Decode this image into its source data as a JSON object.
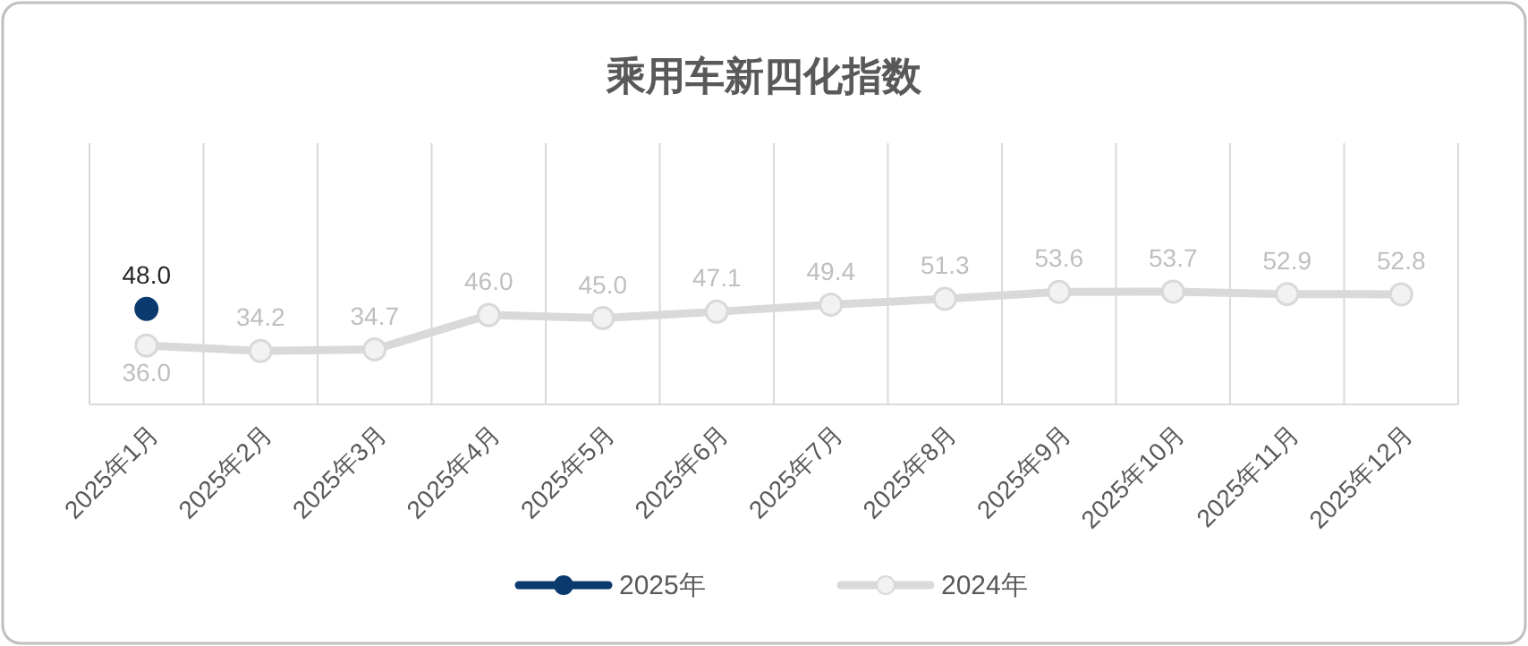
{
  "chart_data": {
    "type": "line",
    "title": "乘用车新四化指数",
    "categories": [
      "2025年1月",
      "2025年2月",
      "2025年3月",
      "2025年4月",
      "2025年5月",
      "2025年6月",
      "2025年7月",
      "2025年8月",
      "2025年9月",
      "2025年10月",
      "2025年11月",
      "2025年12月"
    ],
    "series": [
      {
        "name": "2025年",
        "color": "#0b3a6e",
        "values": [
          48.0,
          null,
          null,
          null,
          null,
          null,
          null,
          null,
          null,
          null,
          null,
          null
        ],
        "value_labels": [
          "48.0",
          null,
          null,
          null,
          null,
          null,
          null,
          null,
          null,
          null,
          null,
          null
        ]
      },
      {
        "name": "2024年",
        "color": "#d9d9d9",
        "values": [
          36.0,
          34.2,
          34.7,
          46.0,
          45.0,
          47.1,
          49.4,
          51.3,
          53.6,
          53.7,
          52.9,
          52.8
        ],
        "value_labels": [
          "36.0",
          "34.2",
          "34.7",
          "46.0",
          "45.0",
          "47.1",
          "49.4",
          "51.3",
          "53.6",
          "53.7",
          "52.9",
          "52.8"
        ]
      }
    ],
    "grid": "x",
    "legend": "bottom",
    "marker": "circle",
    "line_style": "solid"
  }
}
